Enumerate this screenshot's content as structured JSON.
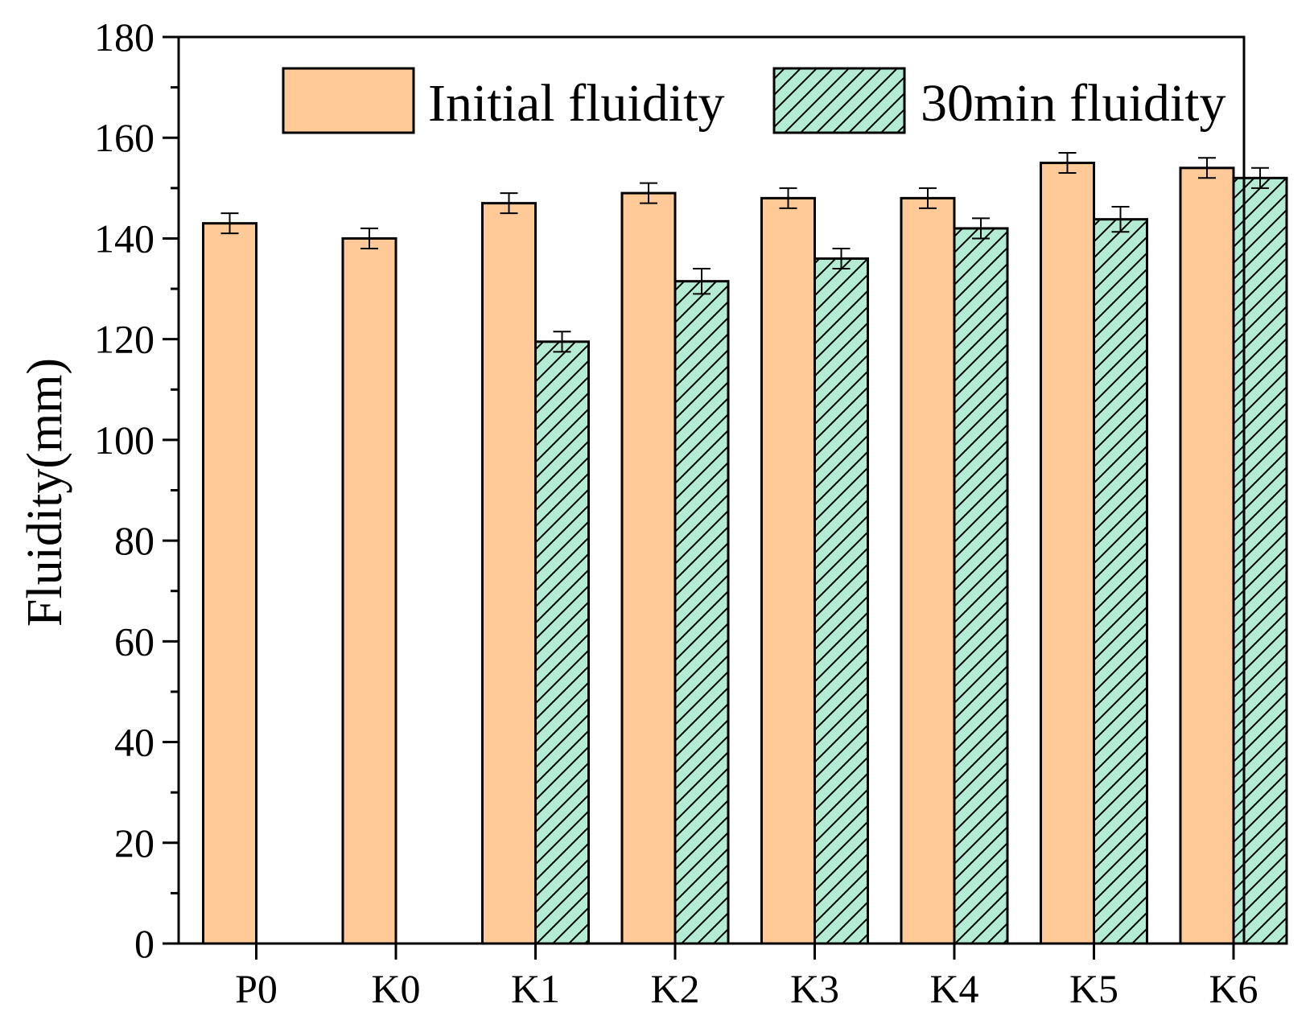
{
  "chart_data": {
    "type": "bar",
    "title": "",
    "xlabel": "",
    "ylabel": "Fluidity(mm)",
    "ylim": [
      0,
      180
    ],
    "yticks": [
      0,
      20,
      40,
      60,
      80,
      100,
      120,
      140,
      160,
      180
    ],
    "categories": [
      "P0",
      "K0",
      "K1",
      "K2",
      "K3",
      "K4",
      "K5",
      "K6"
    ],
    "series": [
      {
        "name": "Initial fluidity",
        "color": "#FFC998",
        "pattern": "solid",
        "values": [
          143,
          140,
          147,
          149,
          148,
          148,
          155,
          154
        ],
        "errors": [
          2,
          2,
          2,
          2,
          2,
          2,
          2,
          2
        ]
      },
      {
        "name": "30min fluidity",
        "color": "#B3EBD3",
        "pattern": "hatch",
        "values": [
          null,
          null,
          119.5,
          131.5,
          136,
          142,
          143.8,
          152
        ],
        "errors": [
          null,
          null,
          2,
          2.5,
          2,
          2,
          2.5,
          2
        ]
      }
    ],
    "legend": {
      "position": "top-right",
      "columns": 2
    },
    "grid": false
  }
}
